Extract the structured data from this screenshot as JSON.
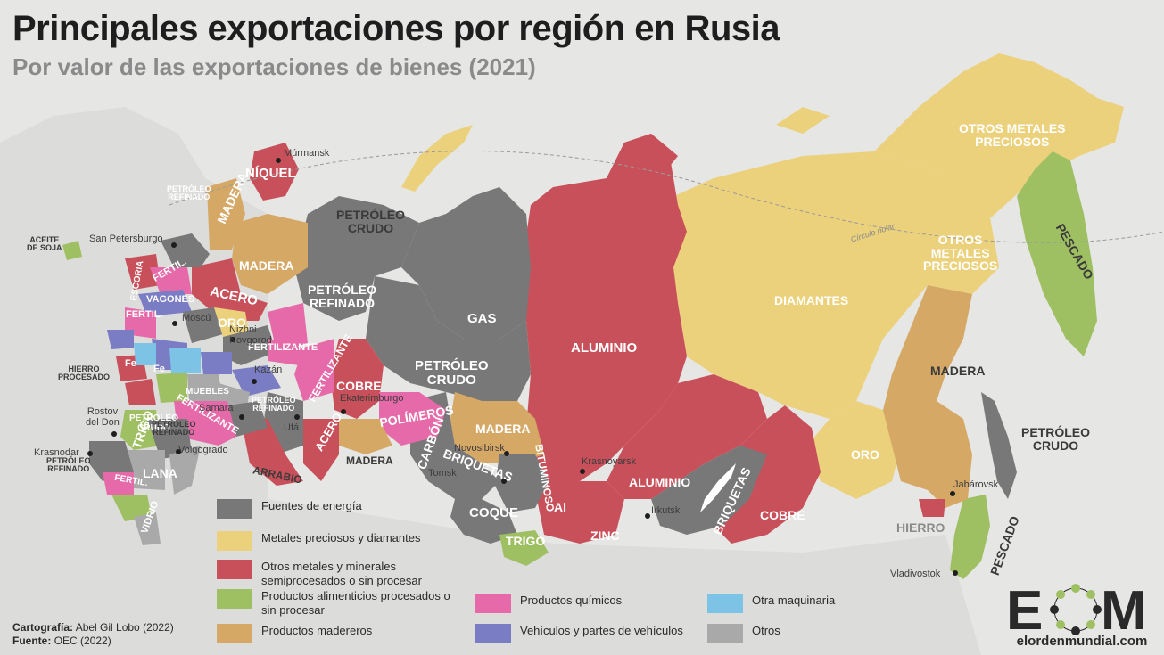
{
  "title": "Principales exportaciones por región en Rusia",
  "subtitle": "Por valor de las exportaciones de bienes (2021)",
  "colors": {
    "energia": "#787878",
    "metales_preciosos": "#ecd17c",
    "otros_metales": "#c8505a",
    "alimentos": "#9fc062",
    "quimicos": "#e66aa9",
    "maquinaria": "#7cc3e6",
    "madereros": "#d5a866",
    "vehiculos": "#7a7dc4",
    "otros": "#a9a9a9",
    "background": "#e6e6e4"
  },
  "regions": [
    {
      "label": "NÍQUEL",
      "category": "otros_metales"
    },
    {
      "label": "MADERA",
      "category": "madereros"
    },
    {
      "label": "PETRÓLEO\nCRUDO",
      "category": "energia"
    },
    {
      "label": "MADERA",
      "category": "madereros"
    },
    {
      "label": "ACERO",
      "category": "otros_metales"
    },
    {
      "label": "PETRÓLEO\nREFINADO",
      "category": "energia"
    },
    {
      "label": "GAS",
      "category": "energia"
    },
    {
      "label": "ALUMINIO",
      "category": "otros_metales"
    },
    {
      "label": "DIAMANTES",
      "category": "metales_preciosos"
    },
    {
      "label": "OTROS METALES\nPRECIOSOS",
      "category": "metales_preciosos"
    },
    {
      "label": "OTROS\nMETALES\nPRECIOSOS",
      "category": "metales_preciosos"
    },
    {
      "label": "PESCADO",
      "category": "alimentos"
    },
    {
      "label": "PETRÓLEO\nCRUDO",
      "category": "energia"
    },
    {
      "label": "MADERA",
      "category": "madereros"
    },
    {
      "label": "PETRÓLEO\nCRUDO",
      "category": "energia"
    },
    {
      "label": "COBRE",
      "category": "otros_metales"
    },
    {
      "label": "POLÍMEROS",
      "category": "quimicos"
    },
    {
      "label": "MADERA",
      "category": "madereros"
    },
    {
      "label": "CARBÓN",
      "category": "energia"
    },
    {
      "label": "BRIQUETAS",
      "category": "energia"
    },
    {
      "label": "BITUMINOSO",
      "category": "energia"
    },
    {
      "label": "COQUE",
      "category": "energia"
    },
    {
      "label": "TRIGO",
      "category": "alimentos"
    },
    {
      "label": "Al",
      "category": "otros_metales"
    },
    {
      "label": "ZINC",
      "category": "otros_metales"
    },
    {
      "label": "ALUMINIO",
      "category": "otros_metales"
    },
    {
      "label": "BRIQUETAS",
      "category": "energia"
    },
    {
      "label": "COBRE",
      "category": "otros_metales"
    },
    {
      "label": "ORO",
      "category": "metales_preciosos"
    },
    {
      "label": "HIERRO",
      "category": "otros_metales"
    },
    {
      "label": "PESCADO",
      "category": "alimentos"
    },
    {
      "label": "PETRÓLEO\nCRUDO",
      "category": "energia"
    },
    {
      "label": "ACERO",
      "category": "otros_metales"
    },
    {
      "label": "MADERA",
      "category": "madereros"
    },
    {
      "label": "ARRABIO",
      "category": "otros_metales"
    },
    {
      "label": "FERTILIZANTE",
      "category": "quimicos"
    },
    {
      "label": "FERTILIZANTE",
      "category": "quimicos"
    },
    {
      "label": "FERTILIZANTE",
      "category": "quimicos"
    },
    {
      "label": "ORO",
      "category": "metales_preciosos"
    },
    {
      "label": "VAGONES",
      "category": "vehiculos"
    },
    {
      "label": "FERTIL.",
      "category": "quimicos"
    },
    {
      "label": "FERTIL.",
      "category": "quimicos"
    },
    {
      "label": "ESCORIA",
      "category": "otros_metales"
    },
    {
      "label": "Fe",
      "category": "otros_metales"
    },
    {
      "label": "Fe",
      "category": "otros_metales"
    },
    {
      "label": "MUEBLES",
      "category": "madereros"
    },
    {
      "label": "PETRÓLEO\nREFINADO",
      "category": "energia"
    },
    {
      "label": "PETRÓLEO\nREFINADO",
      "category": "energia"
    },
    {
      "label": "TRIGO",
      "category": "alimentos"
    },
    {
      "label": "LANA",
      "category": "otros"
    },
    {
      "label": "FERTIL.",
      "category": "quimicos"
    },
    {
      "label": "VIDRIO",
      "category": "otros"
    },
    {
      "label": "PETRÓLEO\nREFINADO",
      "category": "energia"
    },
    {
      "label": "PETRÓLEO\nREFINADO",
      "category": "energia"
    },
    {
      "label": "HIERRO\nPROCESADO",
      "category": "otros_metales"
    },
    {
      "label": "ACEITE\nDE SOJA",
      "category": "alimentos"
    }
  ],
  "cities": [
    "Múrmansk",
    "San Petersburgo",
    "Moscú",
    "Nizhni\nNovgorod",
    "Kazán",
    "Samara",
    "Ufá",
    "Ekaterimburgo",
    "Novosibirsk",
    "Tomsk",
    "Krasnoyarsk",
    "Irkutsk",
    "Jabárovsk",
    "Vladivostok",
    "Rostov\ndel Don",
    "Volgogrado",
    "Krasnodar"
  ],
  "arctic_circle_label": "Círculo polar",
  "legend": [
    {
      "label": "Fuentes de energía",
      "category": "energia"
    },
    {
      "label": "Metales preciosos y diamantes",
      "category": "metales_preciosos"
    },
    {
      "label": "Otros metales y minerales\nsemiprocesados o sin procesar",
      "category": "otros_metales"
    },
    {
      "label": "Productos alimenticios procesados o\nsin procesar",
      "category": "alimentos"
    },
    {
      "label": "Productos madereros",
      "category": "madereros"
    },
    {
      "label": "Productos químicos",
      "category": "quimicos"
    },
    {
      "label": "Vehículos y partes de vehículos",
      "category": "vehiculos"
    },
    {
      "label": "Otra maquinaria",
      "category": "maquinaria"
    },
    {
      "label": "Otros",
      "category": "otros"
    }
  ],
  "credits": {
    "cartografia_label": "Cartografía:",
    "cartografia_value": "Abel Gil Lobo (2022)",
    "fuente_label": "Fuente:",
    "fuente_value": "OEC (2022)"
  },
  "logo": {
    "letters": "EOM",
    "site": "elordenmundial.com"
  }
}
